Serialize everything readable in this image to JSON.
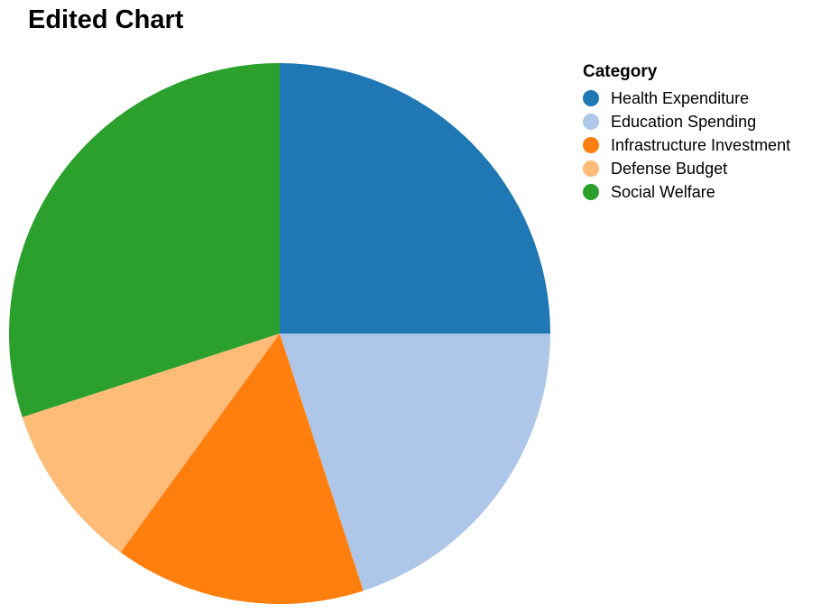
{
  "chart_data": {
    "type": "pie",
    "title": "Edited Chart",
    "legend_title": "Category",
    "legend_position": "top-right",
    "start_angle_deg": 0,
    "direction": "clockwise",
    "slices": [
      {
        "label": "Health Expenditure",
        "value": 25,
        "color": "#1f77b4"
      },
      {
        "label": "Education Spending",
        "value": 20,
        "color": "#aec7e8"
      },
      {
        "label": "Infrastructure Investment",
        "value": 15,
        "color": "#ff7f0e"
      },
      {
        "label": "Defense Budget",
        "value": 10,
        "color": "#ffbb78"
      },
      {
        "label": "Social Welfare",
        "value": 30,
        "color": "#2ca02c"
      }
    ]
  }
}
